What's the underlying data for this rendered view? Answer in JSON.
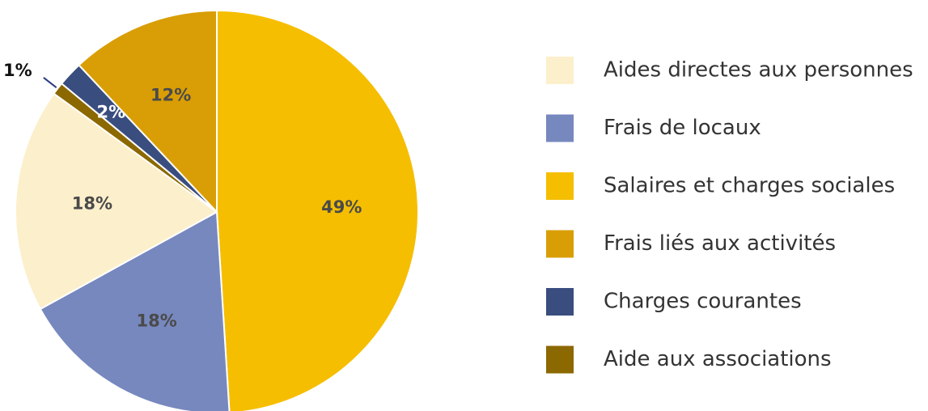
{
  "chart_data": {
    "type": "pie",
    "categories": [
      "Aides directes aux personnes",
      "Frais de locaux",
      "Salaires et charges sociales",
      "Frais liés aux activités",
      "Charges courantes",
      "Aide aux associations"
    ],
    "values": [
      18,
      18,
      49,
      12,
      2,
      1
    ],
    "value_labels": [
      "18%",
      "18%",
      "49%",
      "12%",
      "2%",
      "1%"
    ],
    "colors": [
      "#FCEFCB",
      "#7788BF",
      "#F5BE00",
      "#D99E05",
      "#3A4D7F",
      "#8C6800"
    ],
    "legend": "right"
  }
}
